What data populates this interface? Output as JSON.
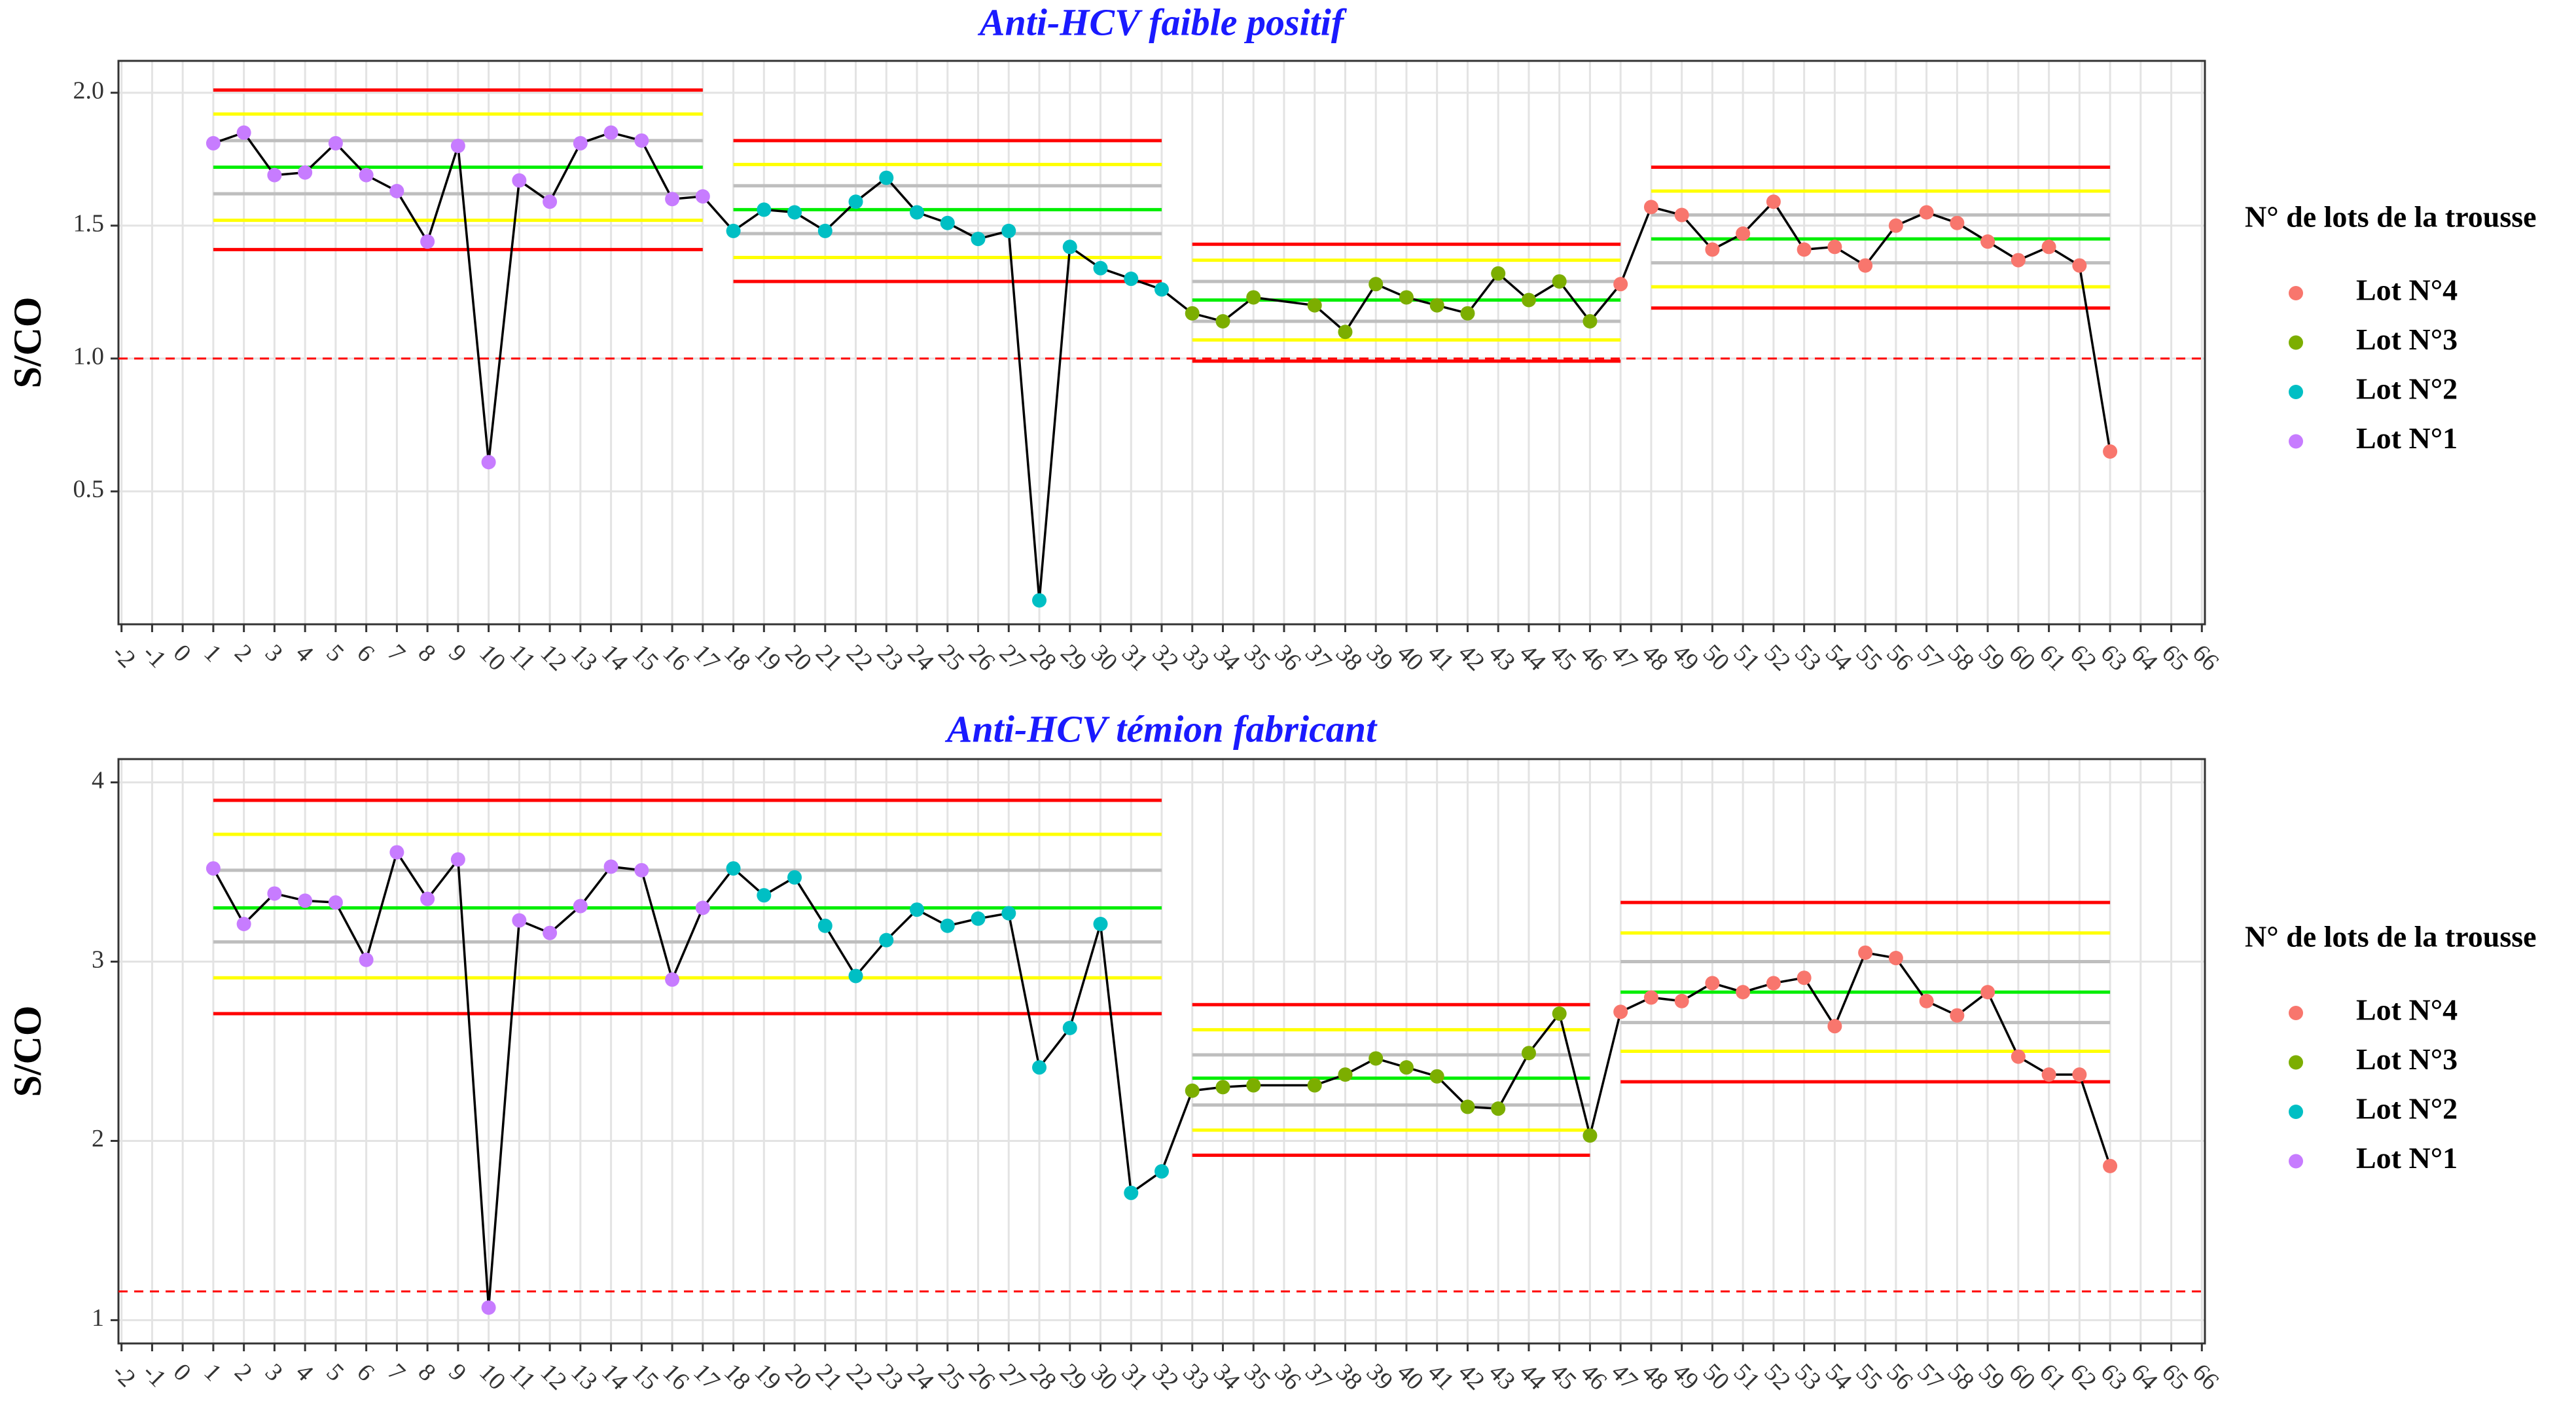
{
  "chart_data": [
    {
      "type": "line",
      "title": "Anti-HCV faible positif",
      "ylabel": "S/CO",
      "legend_title": "N° de lots de la trousse",
      "legend": "right",
      "xlim": [
        -2.1,
        66.1
      ],
      "xticks": [
        -2,
        -1,
        0,
        1,
        2,
        3,
        4,
        5,
        6,
        7,
        8,
        9,
        10,
        11,
        12,
        13,
        14,
        15,
        16,
        17,
        18,
        19,
        20,
        21,
        22,
        23,
        24,
        25,
        26,
        27,
        28,
        29,
        30,
        31,
        32,
        33,
        34,
        35,
        36,
        37,
        38,
        39,
        40,
        41,
        42,
        43,
        44,
        45,
        46,
        47,
        48,
        49,
        50,
        51,
        52,
        53,
        54,
        55,
        56,
        57,
        58,
        59,
        60,
        61,
        62,
        63,
        64,
        65,
        66
      ],
      "ylim": [
        0,
        2.12
      ],
      "yticks": [
        0.5,
        {
          "value": 1,
          "label": "1.0"
        },
        1.5,
        {
          "value": 2,
          "label": "2.0"
        }
      ],
      "grid": true,
      "line_color": "#000000",
      "cutoff": 1.0,
      "cutoff_color": "#ff0000",
      "limit_colors": [
        "#ff0000",
        "#ffff00",
        "#bebebe",
        "#00ee00",
        "#bebebe",
        "#ffff00",
        "#ff0000"
      ],
      "limits": [
        {
          "x": [
            1,
            17
          ],
          "levels": [
            2.01,
            1.92,
            1.82,
            1.72,
            1.62,
            1.52,
            1.41
          ]
        },
        {
          "x": [
            18,
            32
          ],
          "levels": [
            1.82,
            1.73,
            1.65,
            1.56,
            1.47,
            1.38,
            1.29
          ]
        },
        {
          "x": [
            33,
            47
          ],
          "levels": [
            1.43,
            1.37,
            1.29,
            1.22,
            1.14,
            1.07,
            0.99
          ]
        },
        {
          "x": [
            48,
            63
          ],
          "levels": [
            1.72,
            1.63,
            1.54,
            1.45,
            1.36,
            1.27,
            1.19
          ]
        }
      ],
      "series": [
        {
          "name": "Lot N°1",
          "color": "#c77cff",
          "x": [
            1,
            2,
            3,
            4,
            5,
            6,
            7,
            8,
            9,
            10,
            11,
            12,
            13,
            14,
            15,
            16,
            17
          ],
          "values": [
            1.81,
            1.85,
            1.69,
            1.7,
            1.81,
            1.69,
            1.63,
            1.44,
            1.8,
            0.61,
            1.67,
            1.59,
            1.81,
            1.85,
            1.82,
            1.6,
            1.61
          ]
        },
        {
          "name": "Lot N°2",
          "color": "#00bfc4",
          "x": [
            18,
            19,
            20,
            21,
            22,
            23,
            24,
            25,
            26,
            27,
            28,
            29,
            30,
            31,
            32
          ],
          "values": [
            1.48,
            1.56,
            1.55,
            1.48,
            1.59,
            1.68,
            1.55,
            1.51,
            1.45,
            1.48,
            0.09,
            1.42,
            1.34,
            1.3,
            1.26
          ]
        },
        {
          "name": "Lot N°3",
          "color": "#7cae00",
          "x": [
            33,
            34,
            35,
            37,
            38,
            39,
            40,
            41,
            42,
            43,
            44,
            45,
            46
          ],
          "values": [
            1.17,
            1.14,
            1.23,
            1.2,
            1.1,
            1.28,
            1.23,
            1.2,
            1.17,
            1.32,
            1.22,
            1.29,
            1.14
          ]
        },
        {
          "name": "Lot N°4",
          "color": "#f8766d",
          "x": [
            47,
            48,
            49,
            50,
            51,
            52,
            53,
            54,
            55,
            56,
            57,
            58,
            59,
            60,
            61,
            62,
            63
          ],
          "values": [
            1.28,
            1.57,
            1.54,
            1.41,
            1.47,
            1.59,
            1.41,
            1.42,
            1.35,
            1.5,
            1.55,
            1.51,
            1.44,
            1.37,
            1.42,
            1.35,
            0.65
          ]
        }
      ]
    },
    {
      "type": "line",
      "title": "Anti-HCV témion fabricant",
      "ylabel": "S/CO",
      "legend_title": "N° de lots de la trousse",
      "legend": "right",
      "xlim": [
        -2.1,
        66.1
      ],
      "xticks": [
        -2,
        -1,
        0,
        1,
        2,
        3,
        4,
        5,
        6,
        7,
        8,
        9,
        10,
        11,
        12,
        13,
        14,
        15,
        16,
        17,
        18,
        19,
        20,
        21,
        22,
        23,
        24,
        25,
        26,
        27,
        28,
        29,
        30,
        31,
        32,
        33,
        34,
        35,
        36,
        37,
        38,
        39,
        40,
        41,
        42,
        43,
        44,
        45,
        46,
        47,
        48,
        49,
        50,
        51,
        52,
        53,
        54,
        55,
        56,
        57,
        58,
        59,
        60,
        61,
        62,
        63,
        64,
        65,
        66
      ],
      "ylim": [
        0.87,
        4.13
      ],
      "yticks": [
        1,
        2,
        3,
        4
      ],
      "grid": true,
      "line_color": "#000000",
      "cutoff": 1.16,
      "cutoff_color": "#ff0000",
      "limit_colors": [
        "#ff0000",
        "#ffff00",
        "#bebebe",
        "#00ee00",
        "#bebebe",
        "#ffff00",
        "#ff0000"
      ],
      "limits": [
        {
          "x": [
            1,
            32
          ],
          "levels": [
            3.9,
            3.71,
            3.51,
            3.3,
            3.11,
            2.91,
            2.71
          ]
        },
        {
          "x": [
            33,
            46
          ],
          "levels": [
            2.76,
            2.62,
            2.48,
            2.35,
            2.2,
            2.06,
            1.92
          ]
        },
        {
          "x": [
            47,
            63
          ],
          "levels": [
            3.33,
            3.16,
            3.0,
            2.83,
            2.66,
            2.5,
            2.33
          ]
        }
      ],
      "series": [
        {
          "name": "Lot N°1",
          "color": "#c77cff",
          "x": [
            1,
            2,
            3,
            4,
            5,
            6,
            7,
            8,
            9,
            10,
            11,
            12,
            13,
            14,
            15,
            16,
            17
          ],
          "values": [
            3.52,
            3.21,
            3.38,
            3.34,
            3.33,
            3.01,
            3.61,
            3.35,
            3.57,
            1.07,
            3.23,
            3.16,
            3.31,
            3.53,
            3.51,
            2.9,
            3.3
          ]
        },
        {
          "name": "Lot N°2",
          "color": "#00bfc4",
          "x": [
            18,
            19,
            20,
            21,
            22,
            23,
            24,
            25,
            26,
            27,
            28,
            29,
            30,
            31,
            32
          ],
          "values": [
            3.52,
            3.37,
            3.47,
            3.2,
            2.92,
            3.12,
            3.29,
            3.2,
            3.24,
            3.27,
            2.41,
            2.63,
            3.21,
            1.71,
            1.83
          ]
        },
        {
          "name": "Lot N°3",
          "color": "#7cae00",
          "x": [
            33,
            34,
            35,
            37,
            38,
            39,
            40,
            41,
            42,
            43,
            44,
            45,
            46
          ],
          "values": [
            2.28,
            2.3,
            2.31,
            2.31,
            2.37,
            2.46,
            2.41,
            2.36,
            2.19,
            2.18,
            2.49,
            2.71,
            2.03
          ]
        },
        {
          "name": "Lot N°4",
          "color": "#f8766d",
          "x": [
            47,
            48,
            49,
            50,
            51,
            52,
            53,
            54,
            55,
            56,
            57,
            58,
            59,
            60,
            61,
            62,
            63
          ],
          "values": [
            2.72,
            2.8,
            2.78,
            2.88,
            2.83,
            2.88,
            2.91,
            2.64,
            3.05,
            3.02,
            2.78,
            2.7,
            2.83,
            2.47,
            2.37,
            2.37,
            1.86
          ]
        }
      ]
    }
  ]
}
